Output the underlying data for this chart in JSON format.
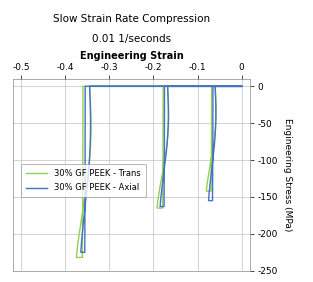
{
  "title_line1": "Slow Strain Rate Compression",
  "title_line2": "0.01 1/seconds",
  "xlabel": "Engineering Strain",
  "ylabel": "Engineering Stress (MPa)",
  "xlim": [
    -0.52,
    0.02
  ],
  "ylim": [
    -250,
    10
  ],
  "xticks": [
    -0.5,
    -0.4,
    -0.3,
    -0.2,
    -0.1,
    0
  ],
  "yticks": [
    0,
    -50,
    -100,
    -150,
    -200,
    -250
  ],
  "color_axial": "#4472C4",
  "color_trans": "#92D050",
  "legend_labels": [
    "30% GF PEEK - Axial",
    "30% GF PEEK - Trans"
  ],
  "background_color": "#ffffff",
  "grid_color": "#c0c0c0"
}
